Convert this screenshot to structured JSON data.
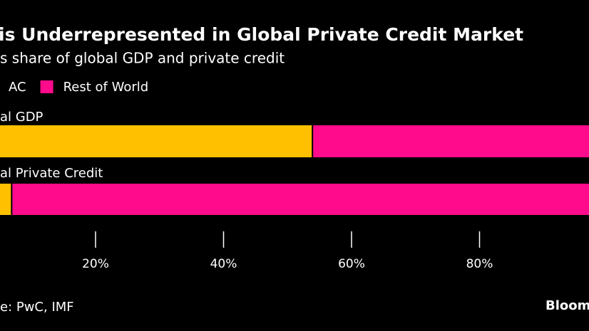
{
  "chart_data": {
    "type": "stacked-bar-horizontal",
    "title": "is Underrepresented in Global Private Credit Market",
    "subtitle": "s share of global GDP and private credit",
    "categories": [
      "al GDP",
      "al Private Credit"
    ],
    "series": [
      {
        "name": "AC",
        "color": "#ffc000",
        "values": [
          54,
          7
        ]
      },
      {
        "name": "Rest of World",
        "color": "#ff0b8c",
        "values": [
          46,
          93
        ]
      }
    ],
    "xlim": [
      0,
      100
    ],
    "xticks": [
      {
        "value": 20,
        "label": "20%"
      },
      {
        "value": 40,
        "label": "40%"
      },
      {
        "value": 60,
        "label": "60%"
      },
      {
        "value": 80,
        "label": "80%"
      }
    ],
    "source": "e: PwC, IMF",
    "brand": "Bloom"
  }
}
